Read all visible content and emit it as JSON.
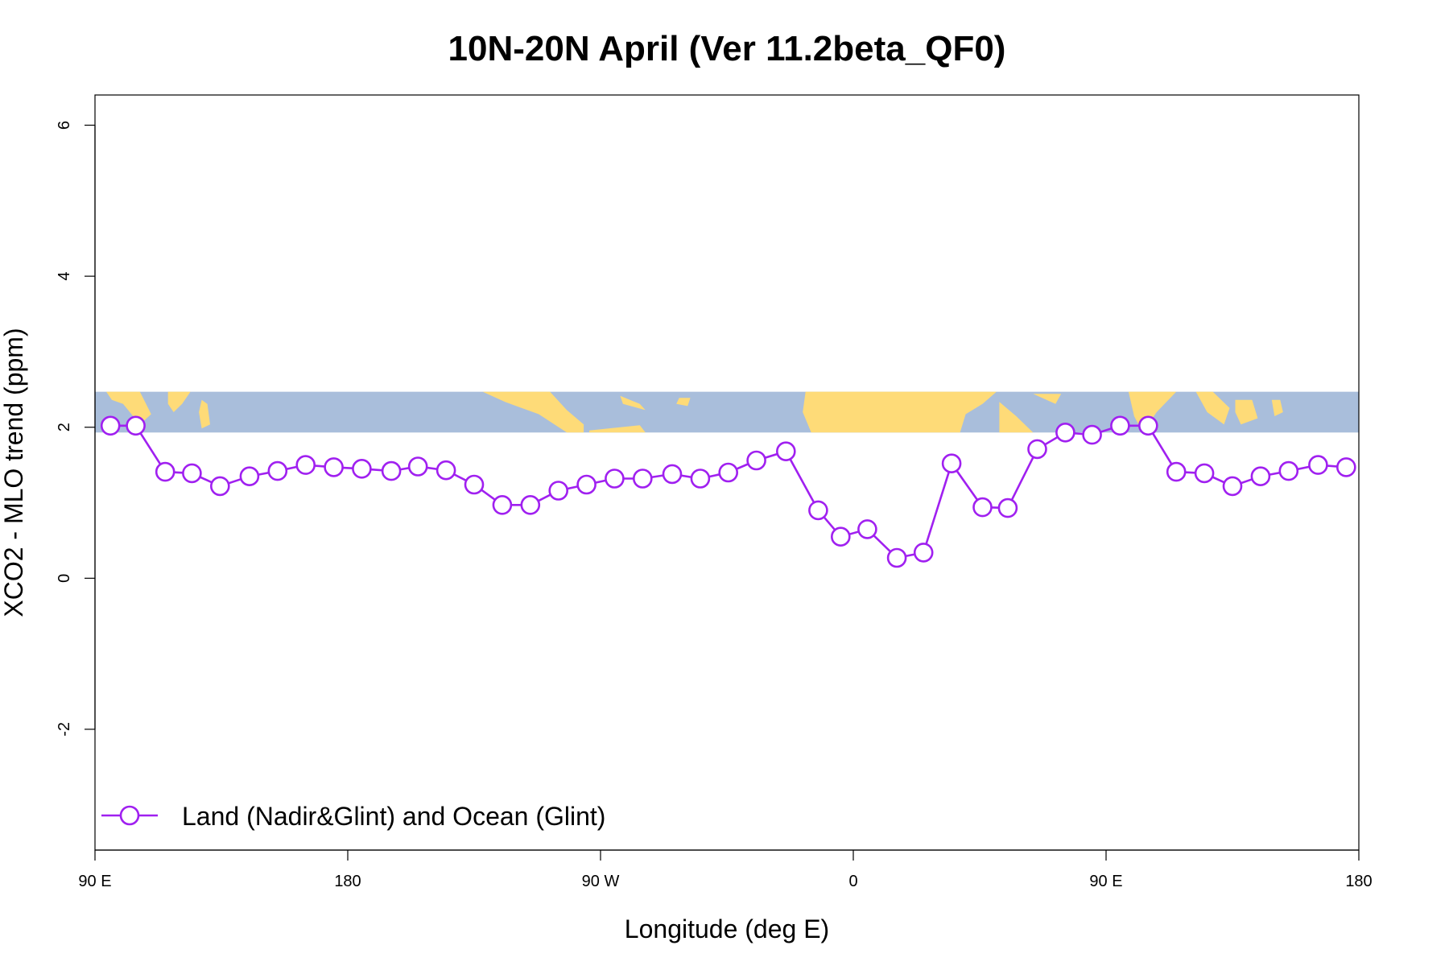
{
  "chart_data": {
    "type": "line",
    "title": "10N-20N April (Ver 11.2beta_QF0)",
    "xlabel": "Longitude (deg E)",
    "ylabel": "XCO2 - MLO trend (ppm)",
    "xlim": [
      90,
      540
    ],
    "ylim": [
      -3.6,
      6.4
    ],
    "x_ticks": [
      {
        "value": 90,
        "label": "90 E"
      },
      {
        "value": 180,
        "label": "180"
      },
      {
        "value": 270,
        "label": "90 W"
      },
      {
        "value": 360,
        "label": "0"
      },
      {
        "value": 450,
        "label": "90 E"
      },
      {
        "value": 540,
        "label": "180"
      }
    ],
    "y_ticks": [
      {
        "value": -2,
        "label": "-2"
      },
      {
        "value": 0,
        "label": "0"
      },
      {
        "value": 2,
        "label": "2"
      },
      {
        "value": 4,
        "label": "4"
      },
      {
        "value": 6,
        "label": "6"
      }
    ],
    "grid": false,
    "legend_position": "bottom-left",
    "map_strip": {
      "ymin": 1.93,
      "ymax": 2.47,
      "ocean_color": "#a9bedb",
      "land_color": "#fedb78"
    },
    "series": [
      {
        "name": "Land (Nadir&Glint) and Ocean (Glint)",
        "color": "#a020f0",
        "x": [
          95.5,
          104.5,
          115,
          124.5,
          134.5,
          145,
          155,
          165,
          175,
          185,
          195.5,
          205,
          215,
          225,
          235,
          245,
          255,
          265,
          275,
          285,
          295.5,
          305.5,
          315.5,
          325.5,
          336,
          347.5,
          355.5,
          365,
          375.5,
          385,
          395,
          406,
          415,
          425.5,
          435.5,
          445,
          455,
          465,
          475,
          485,
          495,
          505,
          515,
          525.5,
          535.5
        ],
        "y": [
          2.02,
          2.02,
          1.41,
          1.39,
          1.22,
          1.35,
          1.42,
          1.5,
          1.47,
          1.45,
          1.42,
          1.48,
          1.43,
          1.24,
          0.97,
          0.97,
          1.16,
          1.24,
          1.32,
          1.32,
          1.38,
          1.32,
          1.4,
          1.56,
          1.68,
          0.9,
          0.55,
          0.65,
          0.27,
          0.34,
          1.52,
          0.94,
          0.93,
          1.71,
          1.93,
          1.9,
          2.02,
          2.02,
          1.41,
          1.39,
          1.22,
          1.35,
          1.42,
          1.5,
          1.47
        ]
      }
    ]
  }
}
